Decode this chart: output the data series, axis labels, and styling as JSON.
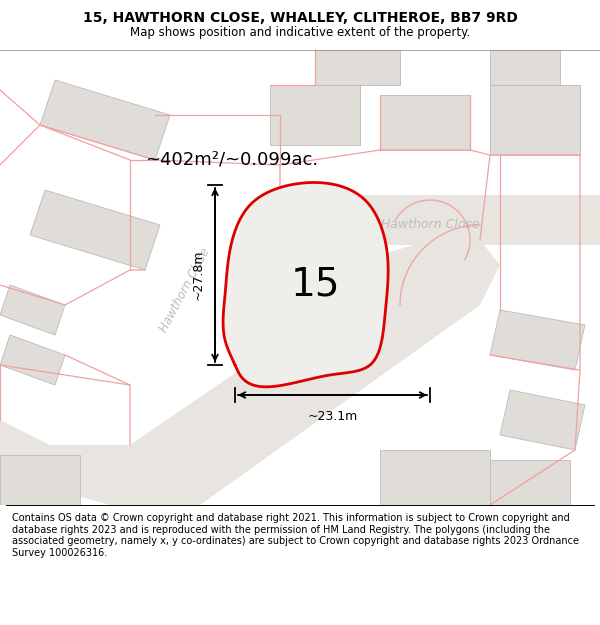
{
  "title_line1": "15, HAWTHORN CLOSE, WHALLEY, CLITHEROE, BB7 9RD",
  "title_line2": "Map shows position and indicative extent of the property.",
  "footer_text": "Contains OS data © Crown copyright and database right 2021. This information is subject to Crown copyright and database rights 2023 and is reproduced with the permission of HM Land Registry. The polygons (including the associated geometry, namely x, y co-ordinates) are subject to Crown copyright and database rights 2023 Ordnance Survey 100026316.",
  "area_label": "~402m²/~0.099ac.",
  "number_label": "15",
  "dim_width_label": "~23.1m",
  "dim_height_label": "~27.8m",
  "road_label": "Hawthorn Close",
  "road_label2": "Hawthorn Close",
  "map_bg": "#f8f7f5",
  "building_fill": "#e0ddd8",
  "building_edge": "#bbbbbb",
  "plot_fill": "#f0eeeb",
  "plot_edge": "#dd0000",
  "highlight_edge": "#f0a0a0",
  "title_fontsize": 10,
  "footer_fontsize": 7.2
}
